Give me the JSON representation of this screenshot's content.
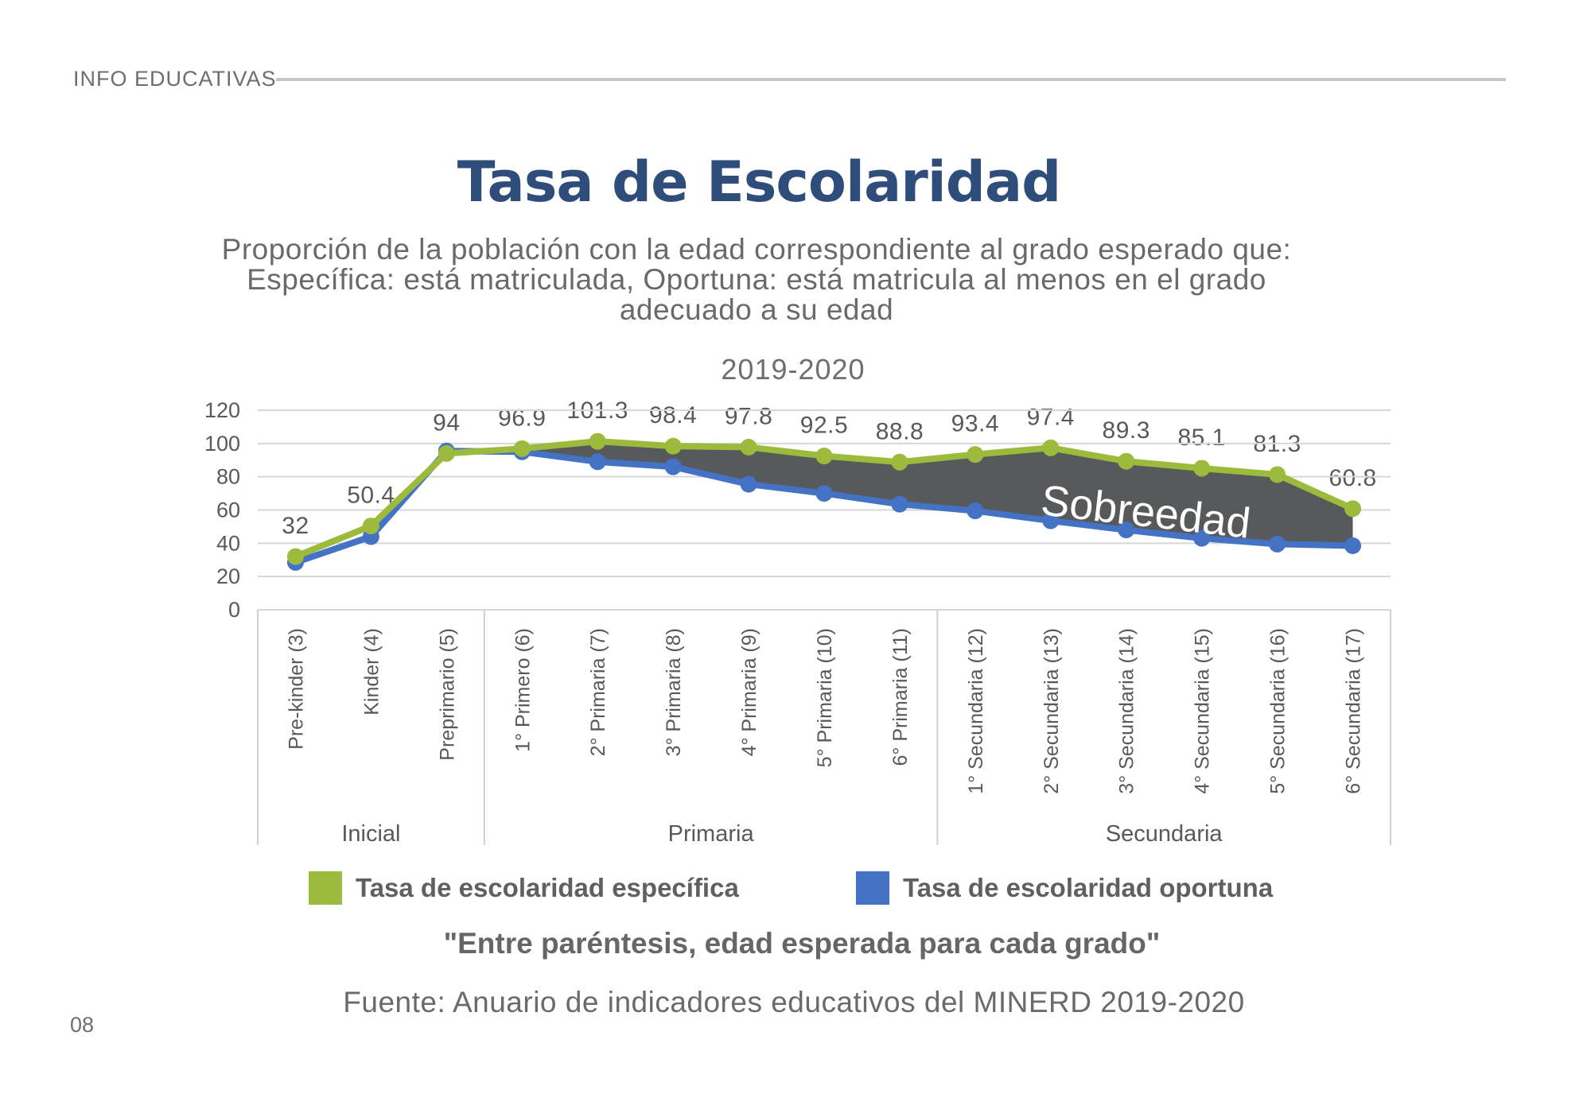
{
  "header": {
    "kicker": "INFO EDUCATIVAS"
  },
  "title": "Tasa de Escolaridad",
  "subtitle": [
    "Proporción de la población con la edad correspondiente al grado esperado que:",
    "Específica: está matriculada, Oportuna: está matricula al menos en el grado",
    "adecuado a su edad"
  ],
  "note": "\"Entre paréntesis, edad esperada para cada grado\"",
  "source": "Fuente: Anuario de indicadores educativos del MINERD 2019-2020",
  "page_number": "08",
  "colors": {
    "title_navy": "#2e4d7b",
    "text_gray": "#6a6a6a",
    "axis_gray": "#595959",
    "gridline": "#d6d6d6",
    "box_line": "#cfcfcf",
    "area_fill": "#58595a",
    "green": "#9cba3b",
    "blue": "#4472c4"
  },
  "chart_data": {
    "type": "line",
    "title": "2019-2020",
    "categories": [
      "Pre-kinder (3)",
      "Kinder (4)",
      "Preprimario (5)",
      "1° Primero (6)",
      "2° Primaria (7)",
      "3° Primaria (8)",
      "4° Primaria (9)",
      "5° Primaria (10)",
      "6° Primaria (11)",
      "1° Secundaria (12)",
      "2° Secundaria (13)",
      "3° Secundaria (14)",
      "4° Secundaria (15)",
      "5° Secundaria (16)",
      "6° Secundaria (17)"
    ],
    "category_groups": [
      {
        "label": "Inicial",
        "span": 3
      },
      {
        "label": "Primaria",
        "span": 6
      },
      {
        "label": "Secundaria",
        "span": 6
      }
    ],
    "series": [
      {
        "name": "Tasa de escolaridad específica",
        "color": "#9cba3b",
        "labeled": true,
        "values": [
          32,
          50.4,
          94,
          96.9,
          101.3,
          98.4,
          97.8,
          92.5,
          88.8,
          93.4,
          97.4,
          89.3,
          85.1,
          81.3,
          60.8
        ]
      },
      {
        "name": "Tasa de escolaridad oportuna",
        "color": "#4472c4",
        "labeled": false,
        "values": [
          28.5,
          44,
          95.5,
          95,
          89,
          86,
          75.5,
          70,
          63.5,
          59.5,
          53.5,
          48,
          43,
          39.5,
          38.5
        ]
      }
    ],
    "area_label": "Sobreedad",
    "area_color": "#58595a",
    "area_between_series": [
      0,
      1
    ],
    "ylim": [
      0,
      120
    ],
    "yticks": [
      0,
      20,
      40,
      60,
      80,
      100,
      120
    ],
    "grid": true,
    "legend_position": "bottom"
  }
}
